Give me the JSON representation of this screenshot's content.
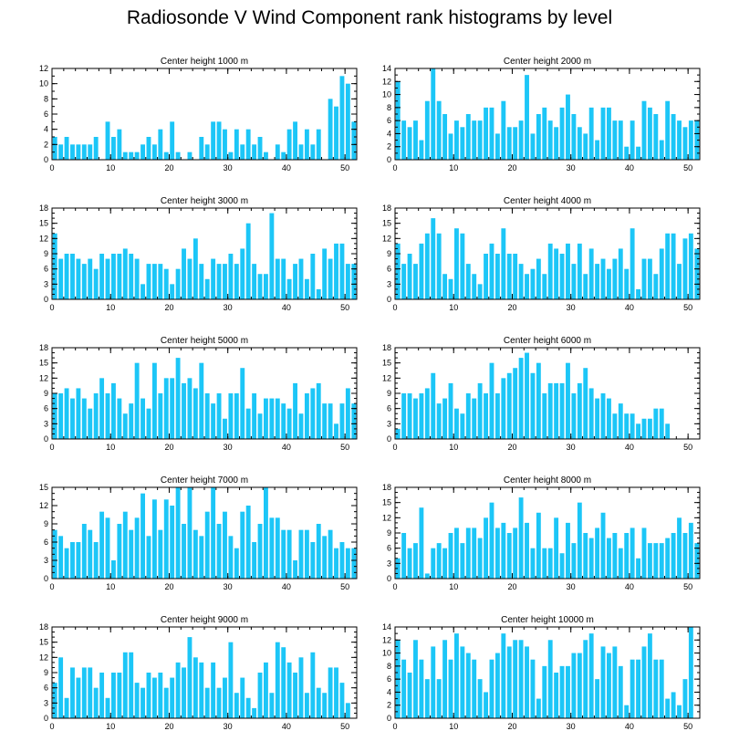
{
  "title": "Radiosonde V Wind Component rank histograms by level",
  "bar_color": "#1cc6f7",
  "chart_data": [
    {
      "type": "bar",
      "title": "Center height 1000 m",
      "xlabel": "",
      "ylabel": "",
      "xlim": [
        0,
        52
      ],
      "xticks": [
        0,
        10,
        20,
        30,
        40,
        50
      ],
      "ylim": [
        0,
        12
      ],
      "yticks": [
        0,
        2,
        4,
        6,
        8,
        10,
        12
      ],
      "x": [
        0,
        1,
        2,
        3,
        4,
        5,
        6,
        7,
        8,
        9,
        10,
        11,
        12,
        13,
        14,
        15,
        16,
        17,
        18,
        19,
        20,
        21,
        22,
        23,
        24,
        25,
        26,
        27,
        28,
        29,
        30,
        31,
        32,
        33,
        34,
        35,
        36,
        37,
        38,
        39,
        40,
        41,
        42,
        43,
        44,
        45,
        46,
        47,
        48,
        49,
        50,
        51
      ],
      "values": [
        3,
        2,
        3,
        2,
        2,
        2,
        2,
        3,
        0,
        5,
        3,
        4,
        1,
        1,
        1,
        2,
        3,
        2,
        4,
        1,
        5,
        1,
        0,
        1,
        0,
        3,
        2,
        5,
        5,
        4,
        1,
        4,
        2,
        4,
        2,
        3,
        1,
        0,
        2,
        1,
        4,
        5,
        2,
        4,
        2,
        4,
        0,
        8,
        7,
        11,
        10,
        5
      ]
    },
    {
      "type": "bar",
      "title": "Center height 2000 m",
      "xlabel": "",
      "ylabel": "",
      "xlim": [
        0,
        52
      ],
      "xticks": [
        0,
        10,
        20,
        30,
        40,
        50
      ],
      "ylim": [
        0,
        14
      ],
      "yticks": [
        0,
        2,
        4,
        6,
        8,
        10,
        12,
        14
      ],
      "x": [
        0,
        1,
        2,
        3,
        4,
        5,
        6,
        7,
        8,
        9,
        10,
        11,
        12,
        13,
        14,
        15,
        16,
        17,
        18,
        19,
        20,
        21,
        22,
        23,
        24,
        25,
        26,
        27,
        28,
        29,
        30,
        31,
        32,
        33,
        34,
        35,
        36,
        37,
        38,
        39,
        40,
        41,
        42,
        43,
        44,
        45,
        46,
        47,
        48,
        49,
        50,
        51
      ],
      "values": [
        12,
        6,
        5,
        6,
        3,
        9,
        14,
        9,
        7,
        4,
        6,
        5,
        7,
        6,
        6,
        8,
        8,
        4,
        9,
        5,
        5,
        6,
        13,
        4,
        7,
        8,
        6,
        5,
        8,
        10,
        7,
        5,
        4,
        8,
        3,
        8,
        8,
        6,
        6,
        2,
        6,
        2,
        9,
        8,
        7,
        3,
        9,
        7,
        6,
        5,
        6,
        6
      ]
    },
    {
      "type": "bar",
      "title": "Center height 3000 m",
      "xlabel": "",
      "ylabel": "",
      "xlim": [
        0,
        52
      ],
      "xticks": [
        0,
        10,
        20,
        30,
        40,
        50
      ],
      "ylim": [
        0,
        18
      ],
      "yticks": [
        0,
        3,
        6,
        9,
        12,
        15,
        18
      ],
      "x": [
        0,
        1,
        2,
        3,
        4,
        5,
        6,
        7,
        8,
        9,
        10,
        11,
        12,
        13,
        14,
        15,
        16,
        17,
        18,
        19,
        20,
        21,
        22,
        23,
        24,
        25,
        26,
        27,
        28,
        29,
        30,
        31,
        32,
        33,
        34,
        35,
        36,
        37,
        38,
        39,
        40,
        41,
        42,
        43,
        44,
        45,
        46,
        47,
        48,
        49,
        50,
        51
      ],
      "values": [
        13,
        8,
        9,
        9,
        8,
        7,
        8,
        6,
        9,
        8,
        9,
        9,
        10,
        9,
        8,
        3,
        7,
        7,
        7,
        6,
        3,
        6,
        10,
        8,
        12,
        7,
        4,
        8,
        7,
        7,
        9,
        7,
        10,
        15,
        7,
        5,
        5,
        17,
        8,
        8,
        4,
        7,
        8,
        4,
        9,
        2,
        10,
        8,
        11,
        11,
        7,
        7
      ]
    },
    {
      "type": "bar",
      "title": "Center height 4000 m",
      "xlabel": "",
      "ylabel": "",
      "xlim": [
        0,
        52
      ],
      "xticks": [
        0,
        10,
        20,
        30,
        40,
        50
      ],
      "ylim": [
        0,
        18
      ],
      "yticks": [
        0,
        3,
        6,
        9,
        12,
        15,
        18
      ],
      "x": [
        0,
        1,
        2,
        3,
        4,
        5,
        6,
        7,
        8,
        9,
        10,
        11,
        12,
        13,
        14,
        15,
        16,
        17,
        18,
        19,
        20,
        21,
        22,
        23,
        24,
        25,
        26,
        27,
        28,
        29,
        30,
        31,
        32,
        33,
        34,
        35,
        36,
        37,
        38,
        39,
        40,
        41,
        42,
        43,
        44,
        45,
        46,
        47,
        48,
        49,
        50,
        51
      ],
      "values": [
        11,
        7,
        9,
        7,
        11,
        13,
        16,
        13,
        5,
        4,
        14,
        13,
        7,
        5,
        3,
        9,
        11,
        9,
        14,
        9,
        9,
        7,
        5,
        6,
        8,
        5,
        11,
        10,
        9,
        11,
        7,
        11,
        5,
        10,
        7,
        8,
        6,
        8,
        10,
        6,
        14,
        2,
        8,
        8,
        5,
        10,
        13,
        13,
        7,
        12,
        13,
        10
      ]
    },
    {
      "type": "bar",
      "title": "Center height 5000 m",
      "xlabel": "",
      "ylabel": "",
      "xlim": [
        0,
        52
      ],
      "xticks": [
        0,
        10,
        20,
        30,
        40,
        50
      ],
      "ylim": [
        0,
        18
      ],
      "yticks": [
        0,
        3,
        6,
        9,
        12,
        15,
        18
      ],
      "x": [
        0,
        1,
        2,
        3,
        4,
        5,
        6,
        7,
        8,
        9,
        10,
        11,
        12,
        13,
        14,
        15,
        16,
        17,
        18,
        19,
        20,
        21,
        22,
        23,
        24,
        25,
        26,
        27,
        28,
        29,
        30,
        31,
        32,
        33,
        34,
        35,
        36,
        37,
        38,
        39,
        40,
        41,
        42,
        43,
        44,
        45,
        46,
        47,
        48,
        49,
        50,
        51
      ],
      "values": [
        9,
        9,
        10,
        8,
        10,
        8,
        6,
        9,
        12,
        9,
        11,
        8,
        5,
        7,
        15,
        8,
        6,
        15,
        9,
        12,
        12,
        16,
        11,
        12,
        10,
        15,
        9,
        7,
        9,
        4,
        9,
        9,
        14,
        6,
        9,
        5,
        8,
        8,
        8,
        7,
        6,
        11,
        5,
        9,
        10,
        11,
        7,
        7,
        3,
        7,
        10,
        7
      ]
    },
    {
      "type": "bar",
      "title": "Center height 6000 m",
      "xlabel": "",
      "ylabel": "",
      "xlim": [
        0,
        52
      ],
      "xticks": [
        0,
        10,
        20,
        30,
        40,
        50
      ],
      "ylim": [
        0,
        18
      ],
      "yticks": [
        0,
        3,
        6,
        9,
        12,
        15,
        18
      ],
      "x": [
        0,
        1,
        2,
        3,
        4,
        5,
        6,
        7,
        8,
        9,
        10,
        11,
        12,
        13,
        14,
        15,
        16,
        17,
        18,
        19,
        20,
        21,
        22,
        23,
        24,
        25,
        26,
        27,
        28,
        29,
        30,
        31,
        32,
        33,
        34,
        35,
        36,
        37,
        38,
        39,
        40,
        41,
        42,
        43,
        44,
        45,
        46,
        47,
        48,
        49,
        50,
        51
      ],
      "values": [
        2,
        9,
        9,
        8,
        9,
        10,
        13,
        7,
        8,
        11,
        6,
        5,
        9,
        8,
        11,
        9,
        15,
        9,
        12,
        13,
        14,
        16,
        17,
        13,
        15,
        9,
        11,
        11,
        11,
        15,
        9,
        11,
        14,
        10,
        8,
        9,
        8,
        5,
        7,
        5,
        5,
        3,
        4,
        4,
        6,
        6,
        3,
        0,
        0,
        0,
        0,
        0
      ]
    },
    {
      "type": "bar",
      "title": "Center height 7000 m",
      "xlabel": "",
      "ylabel": "",
      "xlim": [
        0,
        52
      ],
      "xticks": [
        0,
        10,
        20,
        30,
        40,
        50
      ],
      "ylim": [
        0,
        15
      ],
      "yticks": [
        0,
        3,
        6,
        9,
        12,
        15
      ],
      "x": [
        0,
        1,
        2,
        3,
        4,
        5,
        6,
        7,
        8,
        9,
        10,
        11,
        12,
        13,
        14,
        15,
        16,
        17,
        18,
        19,
        20,
        21,
        22,
        23,
        24,
        25,
        26,
        27,
        28,
        29,
        30,
        31,
        32,
        33,
        34,
        35,
        36,
        37,
        38,
        39,
        40,
        41,
        42,
        43,
        44,
        45,
        46,
        47,
        48,
        49,
        50,
        51
      ],
      "values": [
        8,
        7,
        5,
        6,
        6,
        9,
        8,
        6,
        11,
        10,
        3,
        9,
        11,
        8,
        10,
        14,
        7,
        13,
        8,
        13,
        12,
        15,
        9,
        15,
        8,
        7,
        11,
        15,
        9,
        11,
        7,
        5,
        11,
        12,
        6,
        9,
        15,
        10,
        10,
        8,
        8,
        3,
        8,
        8,
        6,
        9,
        7,
        8,
        5,
        6,
        5,
        5
      ]
    },
    {
      "type": "bar",
      "title": "Center height 8000 m",
      "xlabel": "",
      "ylabel": "",
      "xlim": [
        0,
        52
      ],
      "xticks": [
        0,
        10,
        20,
        30,
        40,
        50
      ],
      "ylim": [
        0,
        18
      ],
      "yticks": [
        0,
        3,
        6,
        9,
        12,
        15,
        18
      ],
      "x": [
        0,
        1,
        2,
        3,
        4,
        5,
        6,
        7,
        8,
        9,
        10,
        11,
        12,
        13,
        14,
        15,
        16,
        17,
        18,
        19,
        20,
        21,
        22,
        23,
        24,
        25,
        26,
        27,
        28,
        29,
        30,
        31,
        32,
        33,
        34,
        35,
        36,
        37,
        38,
        39,
        40,
        41,
        42,
        43,
        44,
        45,
        46,
        47,
        48,
        49,
        50,
        51
      ],
      "values": [
        4,
        9,
        6,
        7,
        14,
        1,
        6,
        7,
        6,
        9,
        10,
        7,
        10,
        10,
        8,
        12,
        15,
        10,
        11,
        9,
        10,
        16,
        11,
        6,
        13,
        6,
        6,
        12,
        5,
        11,
        7,
        15,
        9,
        8,
        10,
        13,
        8,
        9,
        6,
        9,
        10,
        4,
        10,
        7,
        7,
        7,
        8,
        9,
        12,
        9,
        11,
        7
      ]
    },
    {
      "type": "bar",
      "title": "Center height 9000 m",
      "xlabel": "",
      "ylabel": "",
      "xlim": [
        0,
        52
      ],
      "xticks": [
        0,
        10,
        20,
        30,
        40,
        50
      ],
      "ylim": [
        0,
        18
      ],
      "yticks": [
        0,
        3,
        6,
        9,
        12,
        15,
        18
      ],
      "x": [
        0,
        1,
        2,
        3,
        4,
        5,
        6,
        7,
        8,
        9,
        10,
        11,
        12,
        13,
        14,
        15,
        16,
        17,
        18,
        19,
        20,
        21,
        22,
        23,
        24,
        25,
        26,
        27,
        28,
        29,
        30,
        31,
        32,
        33,
        34,
        35,
        36,
        37,
        38,
        39,
        40,
        41,
        42,
        43,
        44,
        45,
        46,
        47,
        48,
        49,
        50,
        51
      ],
      "values": [
        7,
        12,
        4,
        10,
        8,
        10,
        10,
        6,
        9,
        4,
        9,
        9,
        13,
        13,
        7,
        6,
        9,
        8,
        9,
        6,
        8,
        11,
        10,
        16,
        12,
        11,
        6,
        11,
        6,
        8,
        15,
        5,
        8,
        4,
        2,
        9,
        11,
        5,
        15,
        14,
        11,
        9,
        12,
        5,
        13,
        6,
        5,
        10,
        10,
        7,
        3,
        0
      ]
    },
    {
      "type": "bar",
      "title": "Center height 10000 m",
      "xlabel": "",
      "ylabel": "",
      "xlim": [
        0,
        52
      ],
      "xticks": [
        0,
        10,
        20,
        30,
        40,
        50
      ],
      "ylim": [
        0,
        14
      ],
      "yticks": [
        0,
        2,
        4,
        6,
        8,
        10,
        12,
        14
      ],
      "x": [
        0,
        1,
        2,
        3,
        4,
        5,
        6,
        7,
        8,
        9,
        10,
        11,
        12,
        13,
        14,
        15,
        16,
        17,
        18,
        19,
        20,
        21,
        22,
        23,
        24,
        25,
        26,
        27,
        28,
        29,
        30,
        31,
        32,
        33,
        34,
        35,
        36,
        37,
        38,
        39,
        40,
        41,
        42,
        43,
        44,
        45,
        46,
        47,
        48,
        49,
        50,
        51
      ],
      "values": [
        12,
        9,
        7,
        12,
        9,
        6,
        11,
        6,
        12,
        9,
        13,
        11,
        10,
        9,
        6,
        4,
        9,
        10,
        13,
        11,
        12,
        12,
        11,
        9,
        3,
        8,
        12,
        7,
        8,
        8,
        10,
        10,
        12,
        13,
        6,
        11,
        10,
        11,
        8,
        2,
        9,
        9,
        11,
        13,
        9,
        9,
        3,
        4,
        2,
        6,
        14,
        0
      ]
    }
  ]
}
